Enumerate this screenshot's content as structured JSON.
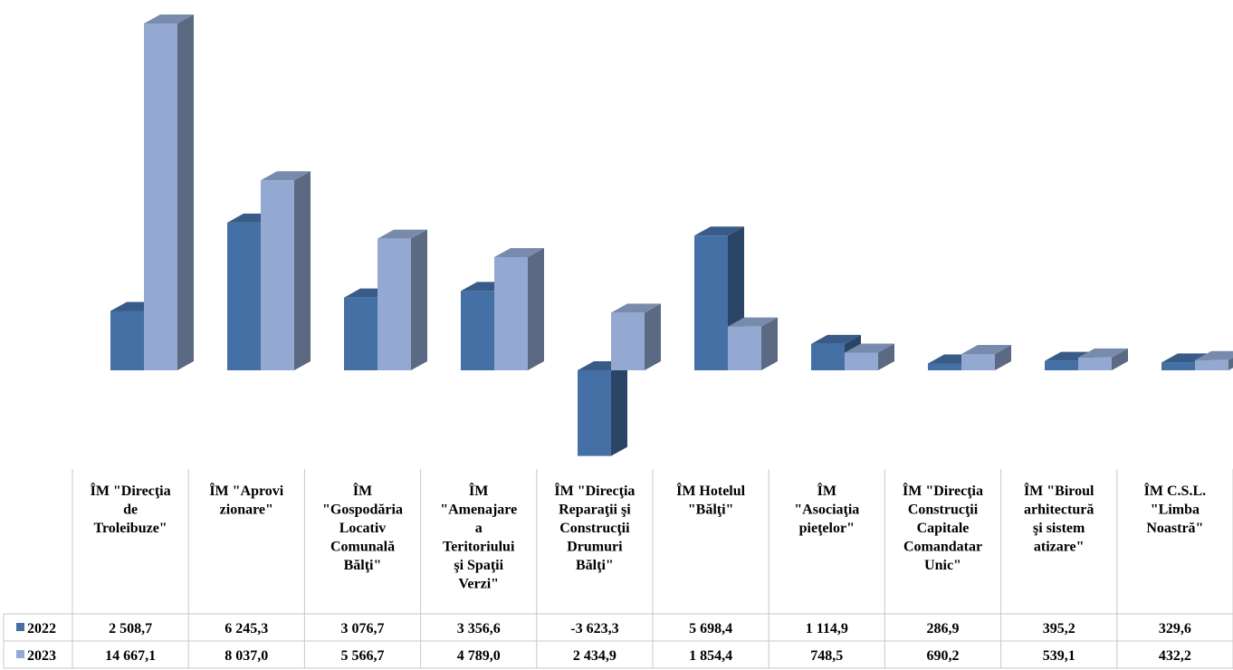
{
  "chart_data": {
    "type": "bar",
    "subtype": "3d-clustered-column-with-data-table",
    "title": "",
    "xlabel": "",
    "ylabel": "",
    "grid": false,
    "legend": "data-table-left",
    "ylim": [
      -3623.3,
      14667.1
    ],
    "categories": [
      [
        "ÎM \"Direcţia",
        "de",
        "Troleibuze\""
      ],
      [
        "ÎM \"Aprovi",
        "zionare\""
      ],
      [
        "ÎM",
        "\"Gospodăria",
        "Locativ",
        "Comunală",
        "Bălţi\""
      ],
      [
        "ÎM",
        "\"Amenajare",
        "a",
        "Teritoriului",
        "şi Spaţii",
        "Verzi\""
      ],
      [
        "ÎM \"Direcţia",
        "Reparaţii şi",
        "Construcţii",
        "Drumuri",
        "Bălţi\""
      ],
      [
        "ÎM Hotelul",
        "\"Bălţi\""
      ],
      [
        "ÎM",
        "\"Asociaţia",
        "pieţelor\""
      ],
      [
        "ÎM \"Direcţia",
        "Construcţii",
        "Capitale",
        "Comandatar",
        "Unic\""
      ],
      [
        "ÎM \"Biroul",
        "arhitectură",
        "şi sistem",
        "atizare\""
      ],
      [
        "ÎM C.S.L.",
        "\"Limba",
        "Noastră\""
      ]
    ],
    "series": [
      {
        "name": "2022",
        "color": "#4470a5",
        "values": [
          2508.7,
          6245.3,
          3076.7,
          3356.6,
          -3623.3,
          5698.4,
          1114.9,
          286.9,
          395.2,
          329.6
        ],
        "labels": [
          "2 508,7",
          "6 245,3",
          "3 076,7",
          "3 356,6",
          "-3 623,3",
          "5 698,4",
          "1 114,9",
          "286,9",
          "395,2",
          "329,6"
        ]
      },
      {
        "name": "2023",
        "color": "#93a9d2",
        "values": [
          14667.1,
          8037.0,
          5566.7,
          4789.0,
          2434.9,
          1854.4,
          748.5,
          690.2,
          539.1,
          432.2
        ],
        "labels": [
          "14 667,1",
          "8 037,0",
          "5 566,7",
          "4 789,0",
          "2 434,9",
          "1 854,4",
          "748,5",
          "690,2",
          "539,1",
          "432,2"
        ]
      }
    ]
  }
}
